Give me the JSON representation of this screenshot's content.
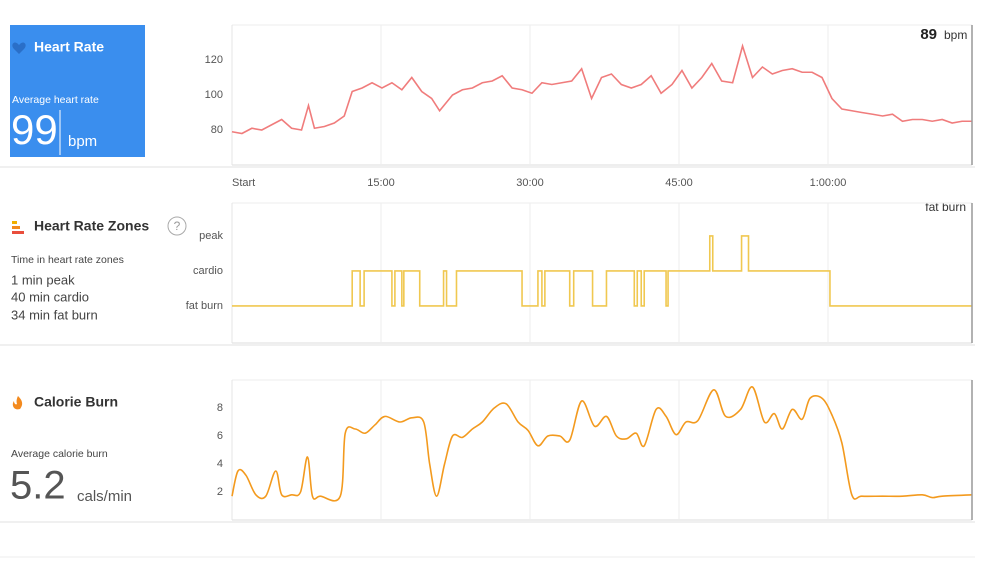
{
  "chart_data": [
    {
      "type": "line",
      "title": "Heart Rate",
      "summary_label": "Average heart rate",
      "summary_value": 99,
      "summary_unit": "bpm",
      "current_value": 89,
      "current_unit": "bpm",
      "color": "#f07c7c",
      "fill": "#fdeeee",
      "xlim": [
        0,
        74.5
      ],
      "xticks": [
        {
          "value": 0,
          "label": "Start"
        },
        {
          "value": 15,
          "label": "15:00"
        },
        {
          "value": 30,
          "label": "30:00"
        },
        {
          "value": 45,
          "label": "45:00"
        },
        {
          "value": 60,
          "label": "1:00:00"
        }
      ],
      "ylim": [
        60,
        140
      ],
      "yticks": [
        80,
        100,
        120
      ],
      "x": [
        0,
        1,
        2,
        3,
        4,
        5,
        6,
        7,
        7.7,
        8.3,
        9.3,
        10.3,
        11.3,
        12.1,
        13.1,
        14.1,
        15.1,
        16.1,
        17.1,
        18.1,
        19.1,
        20.1,
        20.9,
        22.2,
        23.2,
        24.2,
        25.2,
        26.2,
        27.2,
        28.2,
        29.2,
        30.2,
        31.2,
        32.2,
        33.2,
        34.2,
        35.2,
        36.2,
        37.2,
        38.2,
        39.2,
        40.2,
        41.2,
        42.2,
        43.2,
        44.3,
        45.3,
        46.3,
        47.3,
        48.3,
        49.3,
        50.4,
        51.4,
        52.4,
        53.4,
        54.4,
        55.4,
        56.4,
        57.4,
        58.4,
        59.4,
        60.4,
        61.4,
        62.4,
        63.4,
        64.5,
        65.5,
        66.5,
        67.5,
        68.5,
        69.5,
        70.5,
        71.5,
        72.5,
        73.5,
        74.5
      ],
      "values": [
        79,
        78,
        81,
        80,
        83,
        86,
        81,
        80,
        94,
        81,
        82,
        84,
        88,
        102,
        104,
        107,
        104,
        107,
        103,
        110,
        102,
        98,
        91,
        100,
        103,
        104,
        107,
        108,
        111,
        104,
        103,
        101,
        107,
        106,
        107,
        108,
        115,
        98,
        110,
        112,
        106,
        104,
        106,
        111,
        101,
        106,
        114,
        104,
        110,
        118,
        108,
        107,
        128,
        110,
        116,
        112,
        114,
        115,
        113,
        113,
        110,
        98,
        92,
        91,
        90,
        89,
        88,
        89,
        85,
        86,
        86,
        85,
        86,
        84,
        85,
        85
      ]
    },
    {
      "type": "line",
      "step": true,
      "title": "Heart Rate Zones",
      "help": "?",
      "summary_label": "Time in heart rate zones",
      "zone_summary": [
        "1 min peak",
        "40 min cardio",
        "34 min fat burn"
      ],
      "current_label": "fat burn",
      "color": "#f0c850",
      "fill": "#fdf3f3",
      "xlim": [
        0,
        74.5
      ],
      "ylim": [
        -1.06,
        2.94
      ],
      "yticks": [
        {
          "value": 0,
          "label": "fat burn"
        },
        {
          "value": 1,
          "label": "cardio"
        },
        {
          "value": 2,
          "label": "peak"
        }
      ],
      "x": [
        0,
        12.1,
        12.9,
        13.3,
        16.1,
        16.4,
        17.1,
        17.3,
        18.9,
        21.3,
        21.6,
        22.6,
        29.2,
        30.8,
        31.2,
        31.5,
        34.0,
        34.4,
        36.3,
        37.7,
        40.5,
        40.8,
        41.2,
        41.5,
        43.7,
        43.9,
        48.1,
        48.4,
        51.3,
        52.0,
        60.2,
        74.5
      ],
      "values": [
        0,
        1,
        0,
        1,
        0,
        1,
        0,
        1,
        0,
        1,
        0,
        1,
        0,
        1,
        0,
        1,
        0,
        1,
        0,
        1,
        0,
        1,
        0,
        1,
        0,
        1,
        2,
        1,
        2,
        1,
        0,
        0
      ]
    },
    {
      "type": "line",
      "smooth": true,
      "title": "Calorie Burn",
      "summary_label": "Average calorie burn",
      "summary_value": 5.2,
      "summary_unit": "cals/min",
      "color": "#f39a1e",
      "fill": "#fdf3e6",
      "xlim": [
        0,
        74.5
      ],
      "ylim": [
        0,
        10
      ],
      "yticks": [
        2,
        4,
        6,
        8
      ],
      "x": [
        0,
        0.6,
        1.4,
        2.4,
        3.4,
        4.4,
        5.0,
        6.0,
        6.9,
        7.6,
        8.1,
        8.9,
        10.9,
        11.4,
        12.4,
        13.4,
        14.4,
        15.4,
        16.9,
        18.1,
        19.3,
        19.9,
        20.6,
        21.4,
        22.2,
        23.2,
        24.2,
        25.2,
        26.4,
        27.6,
        28.8,
        29.8,
        30.8,
        31.8,
        33.0,
        34.0,
        35.2,
        36.5,
        37.7,
        38.7,
        39.7,
        40.7,
        41.5,
        42.7,
        43.7,
        44.7,
        45.7,
        46.9,
        48.5,
        49.7,
        51.2,
        52.4,
        53.6,
        54.6,
        55.4,
        56.4,
        57.4,
        58.2,
        59.4,
        60.4,
        61.4,
        62.4,
        63.4,
        65.5,
        67.5,
        69.5,
        70.5,
        71.5,
        74.5
      ],
      "values": [
        1.7,
        3.5,
        3.2,
        1.8,
        1.7,
        3.5,
        1.8,
        1.8,
        2,
        4.5,
        1.7,
        1.7,
        1.7,
        6.2,
        6.5,
        6.2,
        6.8,
        7.4,
        7.0,
        7.3,
        7.0,
        4.0,
        1.7,
        4,
        6.0,
        5.9,
        6.5,
        7.0,
        8.0,
        8.3,
        7.0,
        6.4,
        5.3,
        6.0,
        6.0,
        5.7,
        8.5,
        6.7,
        7.4,
        6.0,
        5.8,
        6.2,
        5.3,
        7.9,
        7.4,
        6.1,
        7.0,
        7.1,
        9.3,
        7.4,
        7.9,
        9.5,
        7.0,
        7.6,
        6.5,
        7.9,
        7.2,
        8.7,
        8.7,
        7.5,
        5.5,
        1.8,
        1.7,
        1.7,
        1.7,
        1.8,
        1.6,
        1.7,
        1.8
      ]
    }
  ]
}
